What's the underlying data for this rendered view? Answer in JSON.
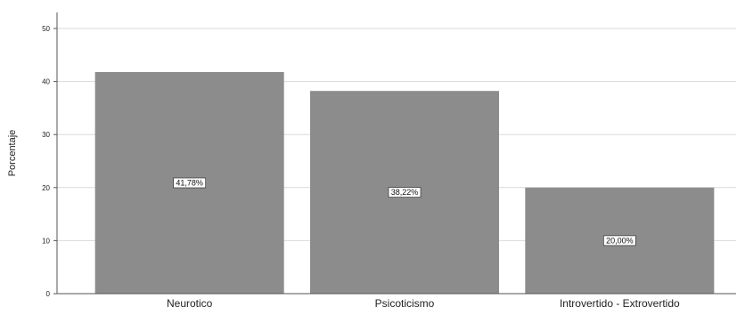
{
  "chart_data": {
    "type": "bar",
    "title": "",
    "xlabel": "",
    "ylabel": "Porcentaje",
    "ylim": [
      0,
      50
    ],
    "yticks": [
      0,
      10,
      20,
      30,
      40,
      50
    ],
    "categories": [
      "Neurotico",
      "Psicoticismo",
      "Introvertido - Extrovertido"
    ],
    "values": [
      41.78,
      38.22,
      20.0
    ],
    "data_labels": [
      "41,78%",
      "38,22%",
      "20,00%"
    ],
    "grid": true,
    "legend": "none",
    "colors": {
      "bar": "#8c8c8c",
      "grid": "#d9d9d9",
      "axis": "#555555",
      "background": "#ffffff"
    }
  }
}
